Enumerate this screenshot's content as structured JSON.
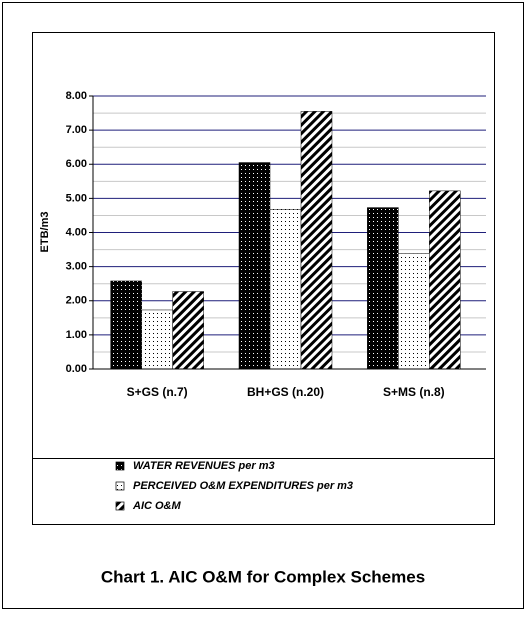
{
  "chart_data": {
    "type": "bar",
    "title": "Chart 1. AIC O&M for Complex Schemes",
    "y_label": "ETB/m3",
    "categories": [
      "S+GS (n.7)",
      "BH+GS (n.20)",
      "S+MS (n.8)"
    ],
    "series": [
      {
        "name": "WATER REVENUES per m3",
        "color": "#000000",
        "pattern": "dots-dark",
        "values": [
          2.58,
          6.05,
          4.73
        ]
      },
      {
        "name": "PERCEIVED O&M EXPENDITURES per m3",
        "color": "#ffffff",
        "pattern": "dots-light",
        "values": [
          1.73,
          4.68,
          3.38
        ]
      },
      {
        "name": "AIC O&M",
        "color": "#ffffff",
        "pattern": "hatch",
        "values": [
          2.27,
          7.55,
          5.22
        ]
      }
    ],
    "ylim": [
      0,
      8
    ],
    "yticks": [
      {
        "value": 0,
        "label": "0.00"
      },
      {
        "value": 1,
        "label": "1.00"
      },
      {
        "value": 2,
        "label": "2.00"
      },
      {
        "value": 3,
        "label": "3.00"
      },
      {
        "value": 4,
        "label": "4.00"
      },
      {
        "value": 5,
        "label": "5.00"
      },
      {
        "value": 6,
        "label": "6.00"
      },
      {
        "value": 7,
        "label": "7.00"
      },
      {
        "value": 8,
        "label": "8.00"
      }
    ],
    "y_minor_ticks": [
      0.5,
      1.5,
      2.5,
      3.5,
      4.5,
      5.5,
      6.5,
      7.5
    ],
    "grid": true,
    "legend": "bottom"
  }
}
